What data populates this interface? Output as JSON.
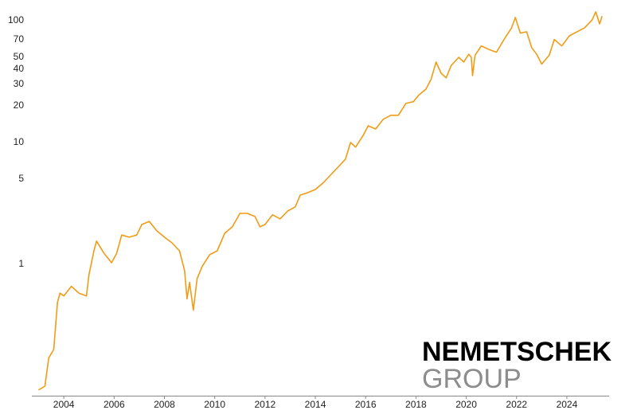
{
  "chart_data": {
    "type": "line",
    "color": "#f29b14",
    "log_scale": true,
    "grid": false,
    "logo": [
      "NEMETSCHEK",
      "GROUP"
    ],
    "xlim": [
      2002.73,
      2025.68
    ],
    "xticks": [
      2004,
      2006,
      2008,
      2010,
      2012,
      2014,
      2016,
      2018,
      2020,
      2022,
      2024
    ],
    "ylim": [
      0.0835,
      127
    ],
    "yticks": [
      1,
      5,
      10,
      20,
      30,
      40,
      50,
      70,
      100
    ],
    "x": [
      2003.0,
      2003.25,
      2003.4,
      2003.6,
      2003.75,
      2003.85,
      2004.0,
      2004.3,
      2004.6,
      2004.9,
      2005.0,
      2005.2,
      2005.3,
      2005.6,
      2005.9,
      2006.1,
      2006.3,
      2006.6,
      2006.9,
      2007.1,
      2007.4,
      2007.7,
      2008.0,
      2008.3,
      2008.6,
      2008.8,
      2008.9,
      2009.0,
      2009.15,
      2009.3,
      2009.5,
      2009.8,
      2010.1,
      2010.4,
      2010.7,
      2011.0,
      2011.3,
      2011.6,
      2011.8,
      2012.0,
      2012.3,
      2012.6,
      2012.9,
      2013.2,
      2013.4,
      2013.7,
      2014.0,
      2014.3,
      2014.6,
      2014.9,
      2015.2,
      2015.4,
      2015.6,
      2015.9,
      2016.1,
      2016.4,
      2016.7,
      2017.0,
      2017.3,
      2017.6,
      2017.9,
      2018.1,
      2018.4,
      2018.6,
      2018.8,
      2019.0,
      2019.2,
      2019.4,
      2019.7,
      2019.9,
      2020.1,
      2020.2,
      2020.25,
      2020.35,
      2020.6,
      2020.9,
      2021.2,
      2021.5,
      2021.8,
      2021.95,
      2022.15,
      2022.4,
      2022.6,
      2022.8,
      2023.0,
      2023.3,
      2023.5,
      2023.8,
      2024.1,
      2024.4,
      2024.7,
      2025.0,
      2025.15,
      2025.3,
      2025.4
    ],
    "values": [
      0.093,
      0.1,
      0.17,
      0.2,
      0.49,
      0.58,
      0.55,
      0.66,
      0.58,
      0.55,
      0.82,
      1.29,
      1.55,
      1.23,
      1.03,
      1.23,
      1.74,
      1.67,
      1.74,
      2.12,
      2.25,
      1.88,
      1.67,
      1.5,
      1.29,
      0.89,
      0.52,
      0.71,
      0.42,
      0.76,
      0.96,
      1.2,
      1.29,
      1.8,
      2.03,
      2.62,
      2.62,
      2.47,
      2.03,
      2.12,
      2.55,
      2.36,
      2.74,
      2.96,
      3.7,
      3.87,
      4.11,
      4.64,
      5.39,
      6.27,
      7.3,
      10,
      9.15,
      11.4,
      13.7,
      12.9,
      15.5,
      16.7,
      16.7,
      20.9,
      21.6,
      24.3,
      27.4,
      32.9,
      45.7,
      37.0,
      33.9,
      42.8,
      50,
      45.7,
      53,
      50,
      35.4,
      52,
      62,
      58,
      55,
      70,
      87,
      106,
      79,
      81,
      60,
      53,
      44,
      52,
      70,
      62,
      75,
      81,
      87,
      101,
      118,
      94,
      109
    ]
  }
}
